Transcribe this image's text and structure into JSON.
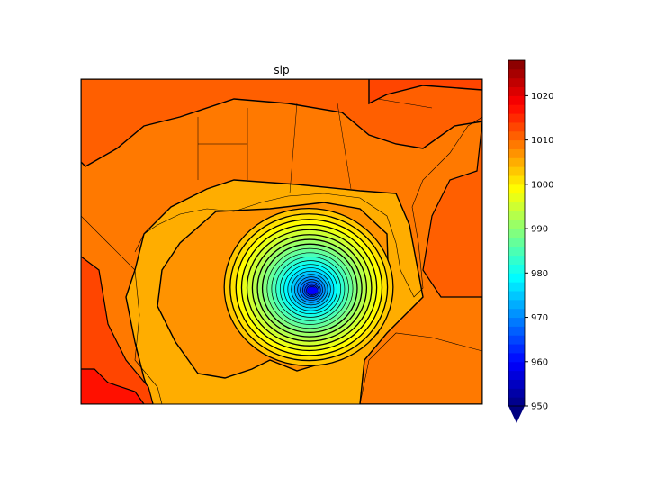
{
  "chart_data": {
    "type": "contour",
    "title": "slp",
    "levels": {
      "min": 950,
      "max": 1028,
      "step": 2
    },
    "colormap": "jet",
    "colorbar": {
      "ticks": [
        "950",
        "960",
        "970",
        "980",
        "990",
        "1000",
        "1010",
        "1020"
      ],
      "extend": "min"
    },
    "field": {
      "low_center_pressure": 960,
      "background_pressure": 1006,
      "north_pressure": 1011,
      "northeast_coast_pressure": 1010,
      "southwest_corner_pressure": 1016
    },
    "overlays": [
      "coastlines",
      "state-borders",
      "contour-lines"
    ]
  }
}
